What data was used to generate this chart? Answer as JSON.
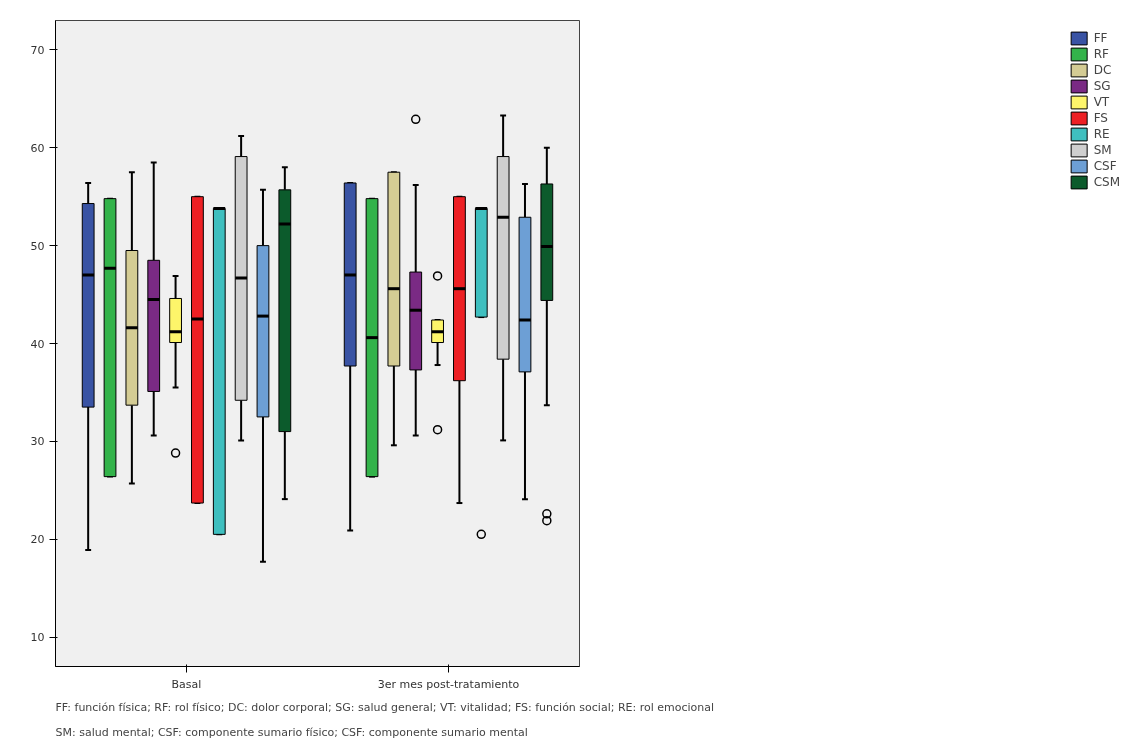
{
  "chart_data": {
    "type": "box",
    "categories": [
      "Basal",
      "3er mes post-tratamiento"
    ],
    "ylim": [
      7,
      73
    ],
    "yticks": [
      10,
      20,
      30,
      40,
      50,
      60,
      70
    ],
    "grid": false,
    "legend": "right",
    "series": [
      {
        "name": "FF",
        "color": "#3953a4",
        "boxes": [
          {
            "low": 18.9,
            "q1": 33.5,
            "median": 47.0,
            "q3": 54.3,
            "high": 56.4
          },
          {
            "low": 20.9,
            "q1": 37.7,
            "median": 47.0,
            "q3": 56.4,
            "high": 56.4
          }
        ]
      },
      {
        "name": "RF",
        "color": "#33b34a",
        "boxes": [
          {
            "low": 26.4,
            "q1": 26.4,
            "median": 47.7,
            "q3": 54.8,
            "high": 54.8
          },
          {
            "low": 26.4,
            "q1": 26.4,
            "median": 40.6,
            "q3": 54.8,
            "high": 54.8
          }
        ]
      },
      {
        "name": "DC",
        "color": "#d4cc94",
        "boxes": [
          {
            "low": 25.7,
            "q1": 33.7,
            "median": 41.6,
            "q3": 49.5,
            "high": 57.5
          },
          {
            "low": 29.6,
            "q1": 37.7,
            "median": 45.6,
            "q3": 57.5,
            "high": 57.5
          }
        ]
      },
      {
        "name": "SG",
        "color": "#7a2a84",
        "boxes": [
          {
            "low": 30.6,
            "q1": 35.1,
            "median": 44.5,
            "q3": 48.5,
            "high": 58.5
          },
          {
            "low": 30.6,
            "q1": 37.3,
            "median": 43.4,
            "q3": 47.3,
            "high": 56.2,
            "outliers": [
              62.9
            ]
          }
        ]
      },
      {
        "name": "VT",
        "color": "#fdf56a",
        "boxes": [
          {
            "low": 35.5,
            "q1": 40.1,
            "median": 41.2,
            "q3": 44.6,
            "high": 46.9,
            "outliers": [
              28.8
            ]
          },
          {
            "low": 37.8,
            "q1": 40.1,
            "median": 41.2,
            "q3": 42.4,
            "high": 42.4,
            "outliers": [
              46.9,
              31.2
            ]
          }
        ]
      },
      {
        "name": "FS",
        "color": "#ed2024",
        "boxes": [
          {
            "low": 23.7,
            "q1": 23.7,
            "median": 42.5,
            "q3": 55.0,
            "high": 55.0
          },
          {
            "low": 23.7,
            "q1": 36.2,
            "median": 45.6,
            "q3": 55.0,
            "high": 55.0
          }
        ]
      },
      {
        "name": "RE",
        "color": "#3fbfbf",
        "boxes": [
          {
            "low": 20.5,
            "q1": 20.5,
            "median": 53.8,
            "q3": 53.8,
            "high": 53.8
          },
          {
            "low": 42.7,
            "q1": 42.7,
            "median": 53.8,
            "q3": 53.8,
            "high": 53.8,
            "outliers": [
              20.5
            ]
          }
        ]
      },
      {
        "name": "SM",
        "color": "#cfcfcf",
        "boxes": [
          {
            "low": 30.1,
            "q1": 34.2,
            "median": 46.7,
            "q3": 59.1,
            "high": 61.2
          },
          {
            "low": 30.1,
            "q1": 38.4,
            "median": 52.9,
            "q3": 59.1,
            "high": 63.3
          }
        ]
      },
      {
        "name": "CSF",
        "color": "#6d9fd5",
        "boxes": [
          {
            "low": 17.7,
            "q1": 32.5,
            "median": 42.8,
            "q3": 50.0,
            "high": 55.7
          },
          {
            "low": 24.1,
            "q1": 37.1,
            "median": 42.4,
            "q3": 52.9,
            "high": 56.3
          }
        ]
      },
      {
        "name": "CSM",
        "color": "#0c5b2c",
        "boxes": [
          {
            "low": 24.1,
            "q1": 31.0,
            "median": 52.2,
            "q3": 55.7,
            "high": 58.0
          },
          {
            "low": 33.7,
            "q1": 44.4,
            "median": 49.9,
            "q3": 56.3,
            "high": 60.0,
            "outliers": [
              22.6,
              21.9
            ]
          }
        ]
      }
    ],
    "annotations": [
      "FF: función física; RF: rol físico; DC: dolor corporal; SG: salud general; VT: vitalidad; FS: función social; RE: rol emocional",
      "SM: salud mental; CSF: componente sumario físico; CSF: componente sumario mental"
    ]
  }
}
